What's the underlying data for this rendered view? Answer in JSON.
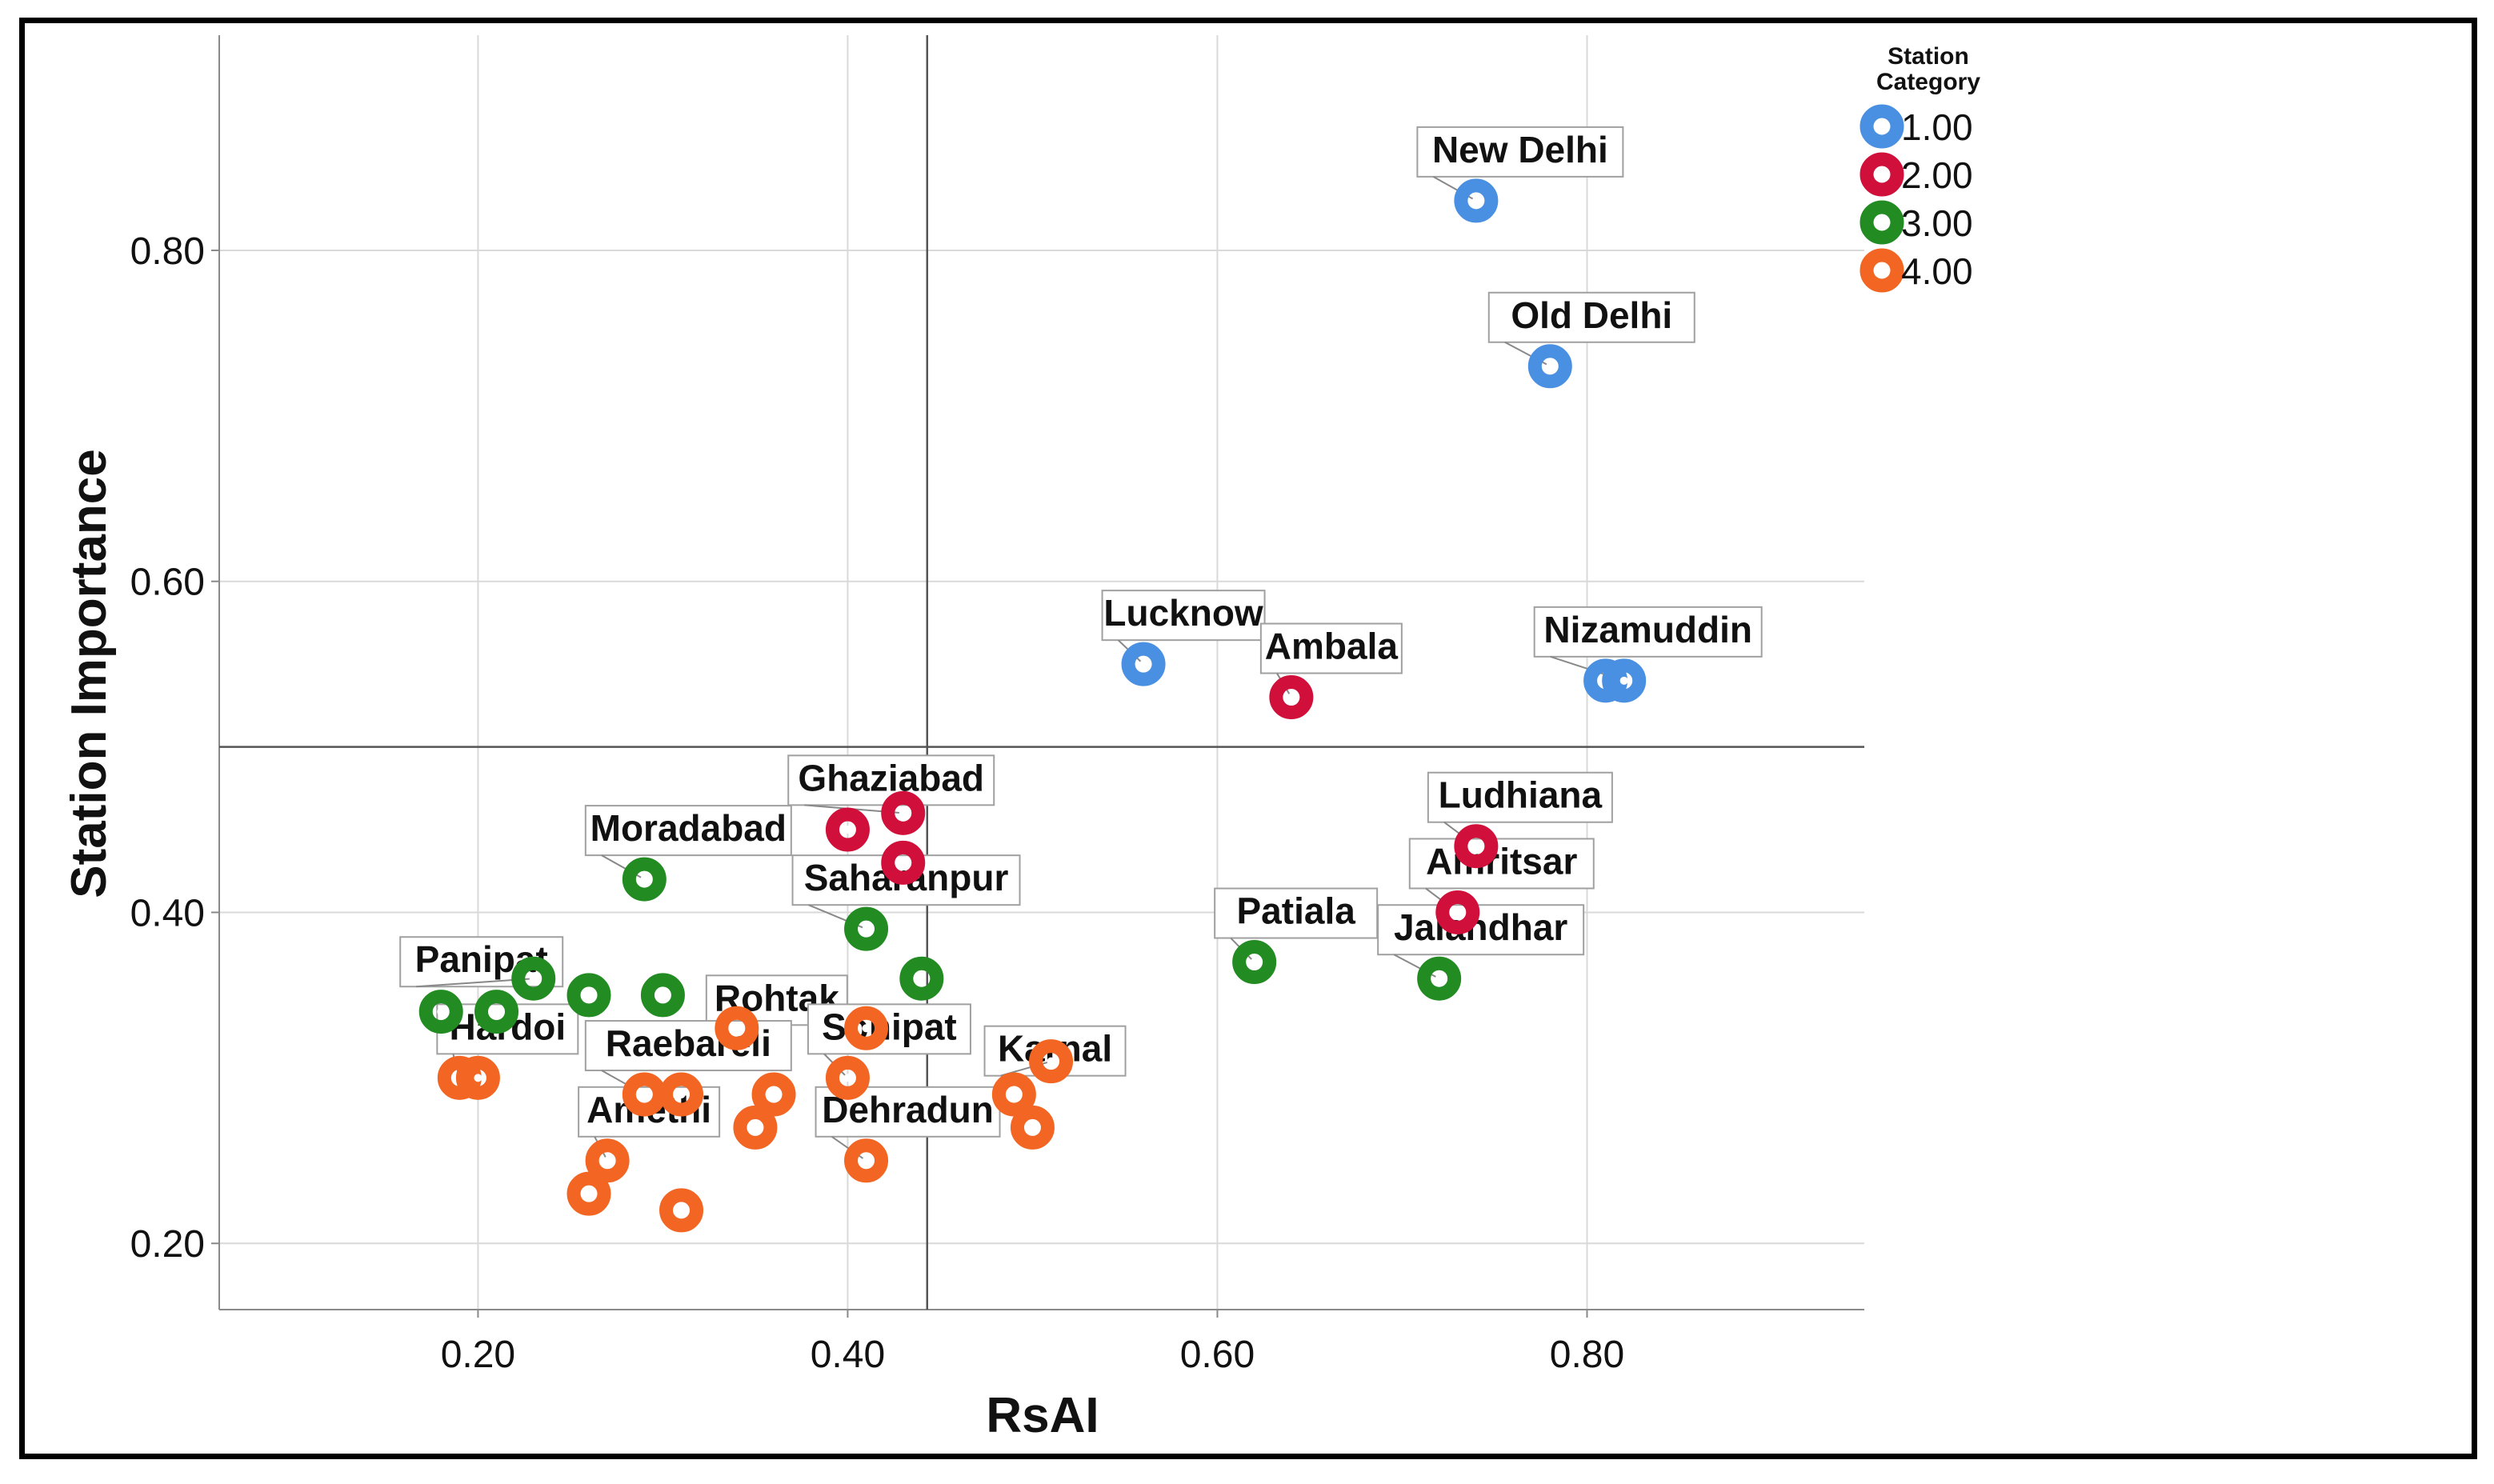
{
  "chart_data": {
    "type": "scatter",
    "xlabel": "RsAI",
    "ylabel": "Station Importance",
    "xlim": [
      0.06,
      0.95
    ],
    "ylim": [
      0.16,
      0.93
    ],
    "xticks": [
      0.2,
      0.4,
      0.6,
      0.8
    ],
    "xtick_labels": [
      "0.20",
      "0.40",
      "0.60",
      "0.80"
    ],
    "yticks": [
      0.2,
      0.4,
      0.6,
      0.8
    ],
    "ytick_labels": [
      "0.20",
      "0.40",
      "0.60",
      "0.80"
    ],
    "grid": true,
    "reference_lines": {
      "x": 0.443,
      "y": 0.5
    },
    "legend": {
      "title": "Station\nCategory",
      "position": "top-right",
      "entries": [
        {
          "label": "1.00",
          "color": "#4a90e2"
        },
        {
          "label": "2.00",
          "color": "#d0103a"
        },
        {
          "label": "3.00",
          "color": "#228b22"
        },
        {
          "label": "4.00",
          "color": "#f26522"
        }
      ]
    },
    "series": [
      {
        "name": "1.00",
        "color": "#4a90e2",
        "points": [
          {
            "x": 0.74,
            "y": 0.83,
            "label": "New Delhi"
          },
          {
            "x": 0.78,
            "y": 0.73,
            "label": "Old Delhi"
          },
          {
            "x": 0.56,
            "y": 0.55,
            "label": "Lucknow"
          },
          {
            "x": 0.81,
            "y": 0.54,
            "label": ""
          },
          {
            "x": 0.82,
            "y": 0.54,
            "label": "Nizamuddin"
          }
        ]
      },
      {
        "name": "2.00",
        "color": "#d0103a",
        "points": [
          {
            "x": 0.64,
            "y": 0.53,
            "label": "Ambala"
          },
          {
            "x": 0.4,
            "y": 0.45,
            "label": ""
          },
          {
            "x": 0.43,
            "y": 0.46,
            "label": "Ghaziabad"
          },
          {
            "x": 0.43,
            "y": 0.43,
            "label": ""
          },
          {
            "x": 0.74,
            "y": 0.44,
            "label": "Ludhiana"
          },
          {
            "x": 0.73,
            "y": 0.4,
            "label": "Amritsar"
          }
        ]
      },
      {
        "name": "3.00",
        "color": "#228b22",
        "points": [
          {
            "x": 0.29,
            "y": 0.42,
            "label": "Moradabad"
          },
          {
            "x": 0.41,
            "y": 0.39,
            "label": "Saharanpur"
          },
          {
            "x": 0.44,
            "y": 0.36,
            "label": ""
          },
          {
            "x": 0.62,
            "y": 0.37,
            "label": "Patiala"
          },
          {
            "x": 0.72,
            "y": 0.36,
            "label": "Jalandhar"
          },
          {
            "x": 0.18,
            "y": 0.34,
            "label": ""
          },
          {
            "x": 0.21,
            "y": 0.34,
            "label": ""
          },
          {
            "x": 0.23,
            "y": 0.36,
            "label": "Panipat"
          },
          {
            "x": 0.26,
            "y": 0.35,
            "label": ""
          },
          {
            "x": 0.3,
            "y": 0.35,
            "label": ""
          }
        ]
      },
      {
        "name": "4.00",
        "color": "#f26522",
        "points": [
          {
            "x": 0.19,
            "y": 0.3,
            "label": "Hardoi"
          },
          {
            "x": 0.2,
            "y": 0.3,
            "label": ""
          },
          {
            "x": 0.34,
            "y": 0.33,
            "label": "Rohtak"
          },
          {
            "x": 0.29,
            "y": 0.29,
            "label": "Raebareli"
          },
          {
            "x": 0.31,
            "y": 0.29,
            "label": ""
          },
          {
            "x": 0.36,
            "y": 0.29,
            "label": ""
          },
          {
            "x": 0.35,
            "y": 0.27,
            "label": ""
          },
          {
            "x": 0.41,
            "y": 0.33,
            "label": ""
          },
          {
            "x": 0.4,
            "y": 0.3,
            "label": "Sonipat"
          },
          {
            "x": 0.41,
            "y": 0.25,
            "label": "Dehradun"
          },
          {
            "x": 0.49,
            "y": 0.29,
            "label": ""
          },
          {
            "x": 0.51,
            "y": 0.31,
            "label": "Karnal"
          },
          {
            "x": 0.5,
            "y": 0.27,
            "label": ""
          },
          {
            "x": 0.27,
            "y": 0.25,
            "label": "Amethi"
          },
          {
            "x": 0.26,
            "y": 0.23,
            "label": ""
          },
          {
            "x": 0.31,
            "y": 0.22,
            "label": ""
          }
        ]
      }
    ]
  }
}
